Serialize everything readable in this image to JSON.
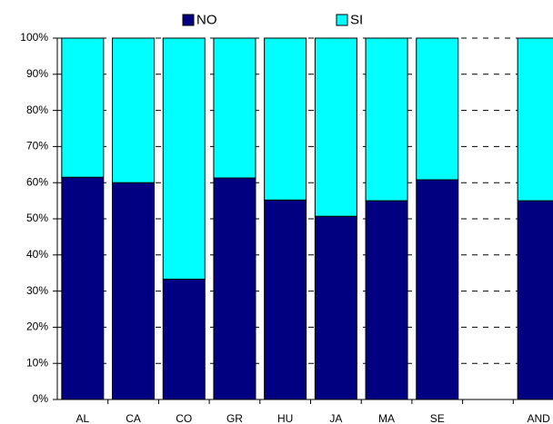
{
  "chart_data": {
    "type": "stacked_bar",
    "categories": [
      "AL",
      "CA",
      "CO",
      "GR",
      "HU",
      "JA",
      "MA",
      "SE",
      null,
      "AND"
    ],
    "series": [
      {
        "name": "NO",
        "color": "#000080",
        "values": [
          61.5,
          60,
          33.3,
          61.3,
          55.2,
          50.7,
          55,
          60.8,
          null,
          55
        ]
      },
      {
        "name": "SI",
        "color": "#00ffff",
        "values": [
          38.5,
          40,
          66.7,
          38.7,
          44.8,
          49.3,
          45,
          39.2,
          null,
          45
        ]
      }
    ],
    "ylim": [
      0,
      100
    ],
    "yticks": [
      {
        "value": 0,
        "label": "0%"
      },
      {
        "value": 10,
        "label": "10%"
      },
      {
        "value": 20,
        "label": "20%"
      },
      {
        "value": 30,
        "label": "30%"
      },
      {
        "value": 40,
        "label": "40%"
      },
      {
        "value": 50,
        "label": "50%"
      },
      {
        "value": 60,
        "label": "60%"
      },
      {
        "value": 70,
        "label": "70%"
      },
      {
        "value": 80,
        "label": "80%"
      },
      {
        "value": 90,
        "label": "90%"
      },
      {
        "value": 100,
        "label": "100%"
      }
    ],
    "grid": true,
    "legend": "top"
  }
}
